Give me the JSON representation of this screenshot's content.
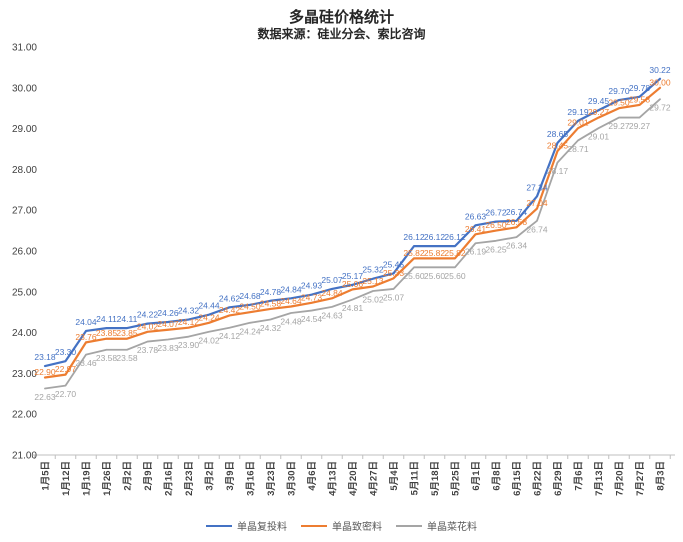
{
  "chart_data": {
    "type": "line",
    "title": "多晶硅价格统计",
    "subtitle": "数据来源：硅业分会、索比咨询",
    "categories": [
      "1月5日",
      "1月12日",
      "1月19日",
      "1月26日",
      "2月2日",
      "2月9日",
      "2月16日",
      "2月23日",
      "3月2日",
      "3月9日",
      "3月16日",
      "3月23日",
      "3月30日",
      "4月6日",
      "4月13日",
      "4月20日",
      "4月27日",
      "5月4日",
      "5月11日",
      "5月18日",
      "5月25日",
      "6月1日",
      "6月8日",
      "6月15日",
      "6月22日",
      "6月29日",
      "7月6日",
      "7月13日",
      "7月20日",
      "7月27日",
      "8月3日"
    ],
    "series": [
      {
        "name": "单晶复投料",
        "color": "#4472C4",
        "values": [
          23.18,
          23.3,
          24.04,
          24.11,
          24.11,
          24.22,
          24.26,
          24.32,
          24.44,
          24.62,
          24.68,
          24.78,
          24.84,
          24.93,
          25.07,
          25.17,
          25.32,
          25.45,
          26.12,
          26.12,
          26.12,
          26.63,
          26.72,
          26.74,
          27.34,
          28.65,
          29.19,
          29.45,
          29.7,
          29.78,
          30.22
        ]
      },
      {
        "name": "单晶致密料",
        "color": "#ED7D31",
        "values": [
          22.9,
          22.97,
          23.76,
          23.85,
          23.85,
          24.02,
          24.07,
          24.12,
          24.24,
          24.42,
          24.5,
          24.58,
          24.64,
          24.73,
          24.84,
          25.06,
          25.13,
          25.33,
          25.82,
          25.82,
          25.82,
          26.41,
          26.5,
          26.58,
          27.04,
          28.45,
          29.01,
          29.27,
          29.5,
          29.58,
          30.0
        ]
      },
      {
        "name": "单晶菜花料",
        "color": "#A5A5A5",
        "values": [
          22.63,
          22.7,
          23.46,
          23.58,
          23.58,
          23.78,
          23.83,
          23.9,
          24.02,
          24.12,
          24.24,
          24.32,
          24.48,
          24.54,
          24.63,
          24.81,
          25.02,
          25.07,
          25.6,
          25.6,
          25.6,
          26.19,
          26.25,
          26.34,
          26.74,
          28.17,
          28.71,
          29.01,
          29.27,
          29.27,
          29.72
        ]
      }
    ],
    "ylim": [
      21,
      31
    ],
    "ytick_step": 1,
    "yticks": [
      "21.00",
      "22.00",
      "23.00",
      "24.00",
      "25.00",
      "26.00",
      "27.00",
      "28.00",
      "29.00",
      "30.00",
      "31.00"
    ],
    "grid": false,
    "data_labels": true,
    "legend_position": "bottom",
    "axis_color": "#BFBFBF",
    "axis_text_color": "#404040"
  }
}
